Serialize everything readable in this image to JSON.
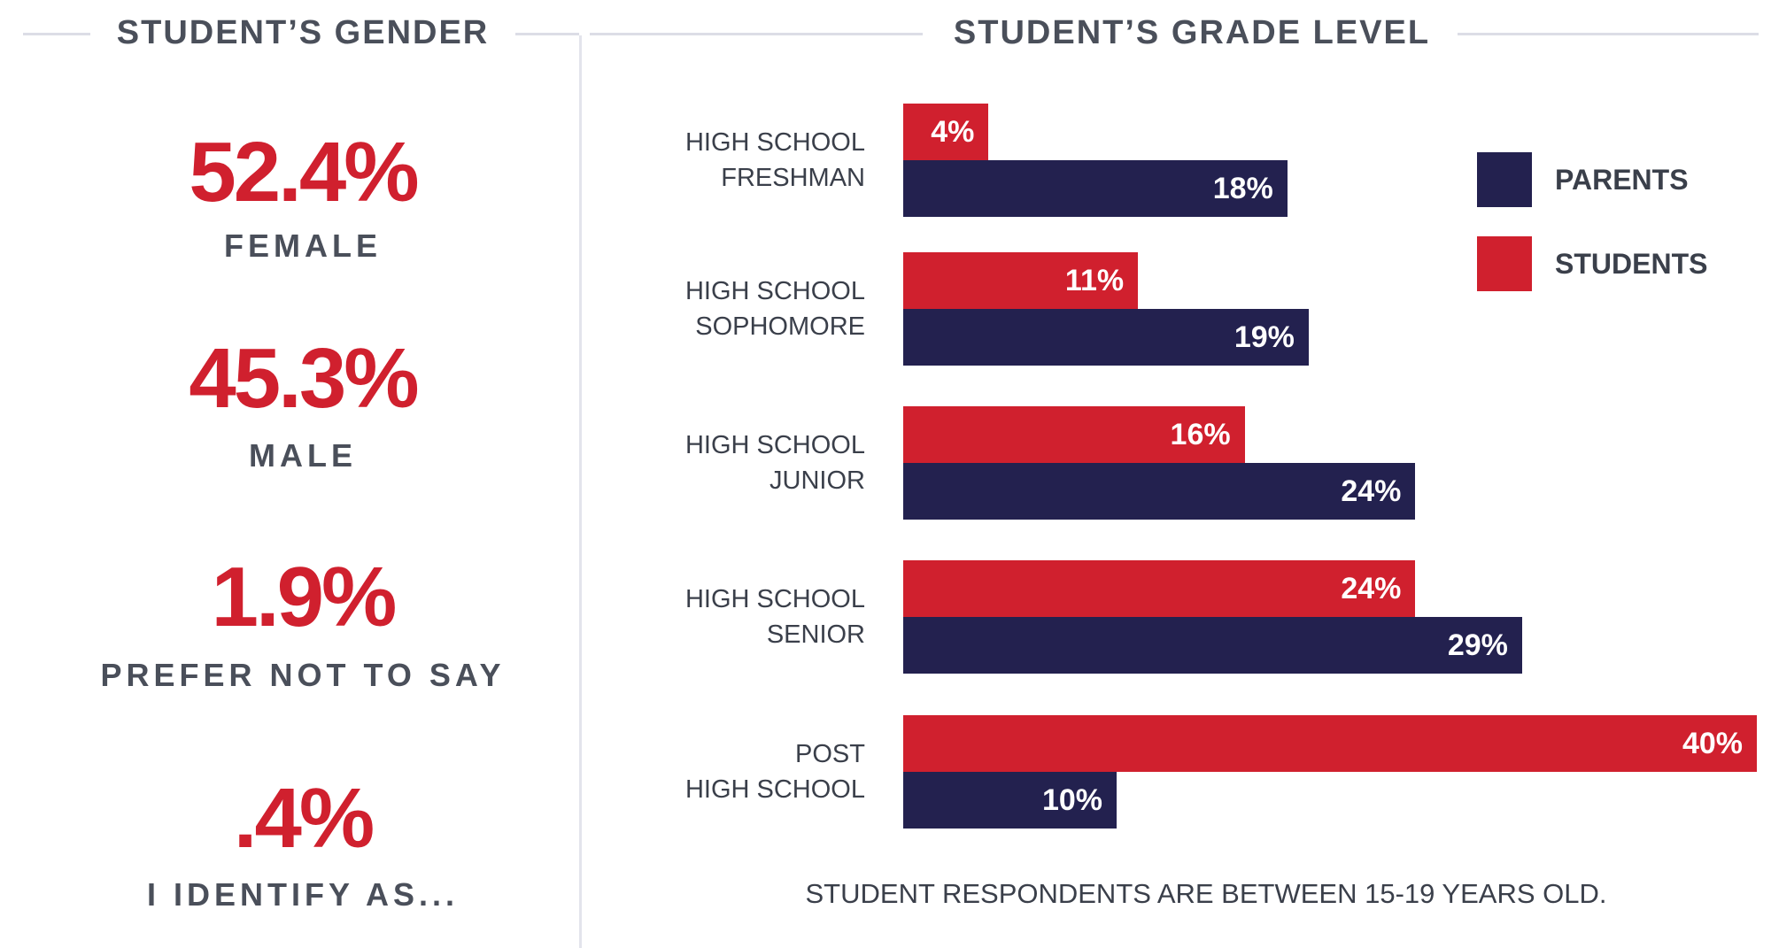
{
  "gender": {
    "title": "STUDENT’S GENDER",
    "items": [
      {
        "value": "52.4%",
        "label": "FEMALE"
      },
      {
        "value": "45.3%",
        "label": "MALE"
      },
      {
        "value": "1.9%",
        "label": "PREFER NOT TO SAY"
      },
      {
        "value": ".4%",
        "label": "I IDENTIFY AS..."
      }
    ]
  },
  "chart_data": {
    "type": "bar",
    "orientation": "horizontal",
    "title": "STUDENT’S GRADE LEVEL",
    "categories": [
      [
        "HIGH SCHOOL",
        "FRESHMAN"
      ],
      [
        "HIGH SCHOOL",
        "SOPHOMORE"
      ],
      [
        "HIGH SCHOOL",
        "JUNIOR"
      ],
      [
        "HIGH SCHOOL",
        "SENIOR"
      ],
      [
        "POST",
        "HIGH SCHOOL"
      ]
    ],
    "series": [
      {
        "name": "STUDENTS",
        "color": "#d0202e",
        "values": [
          4,
          11,
          16,
          24,
          40
        ],
        "labels": [
          "4%",
          "11%",
          "16%",
          "24%",
          "40%"
        ]
      },
      {
        "name": "PARENTS",
        "color": "#23214f",
        "values": [
          18,
          19,
          24,
          29,
          10
        ],
        "labels": [
          "18%",
          "19%",
          "24%",
          "29%",
          "10%"
        ]
      }
    ],
    "legend": [
      {
        "name": "PARENTS",
        "color": "#23214f"
      },
      {
        "name": "STUDENTS",
        "color": "#d0202e"
      }
    ],
    "legend_position": "top-right",
    "xlim": [
      0,
      40
    ],
    "note": "STUDENT RESPONDENTS ARE BETWEEN 15-19 YEARS OLD."
  }
}
